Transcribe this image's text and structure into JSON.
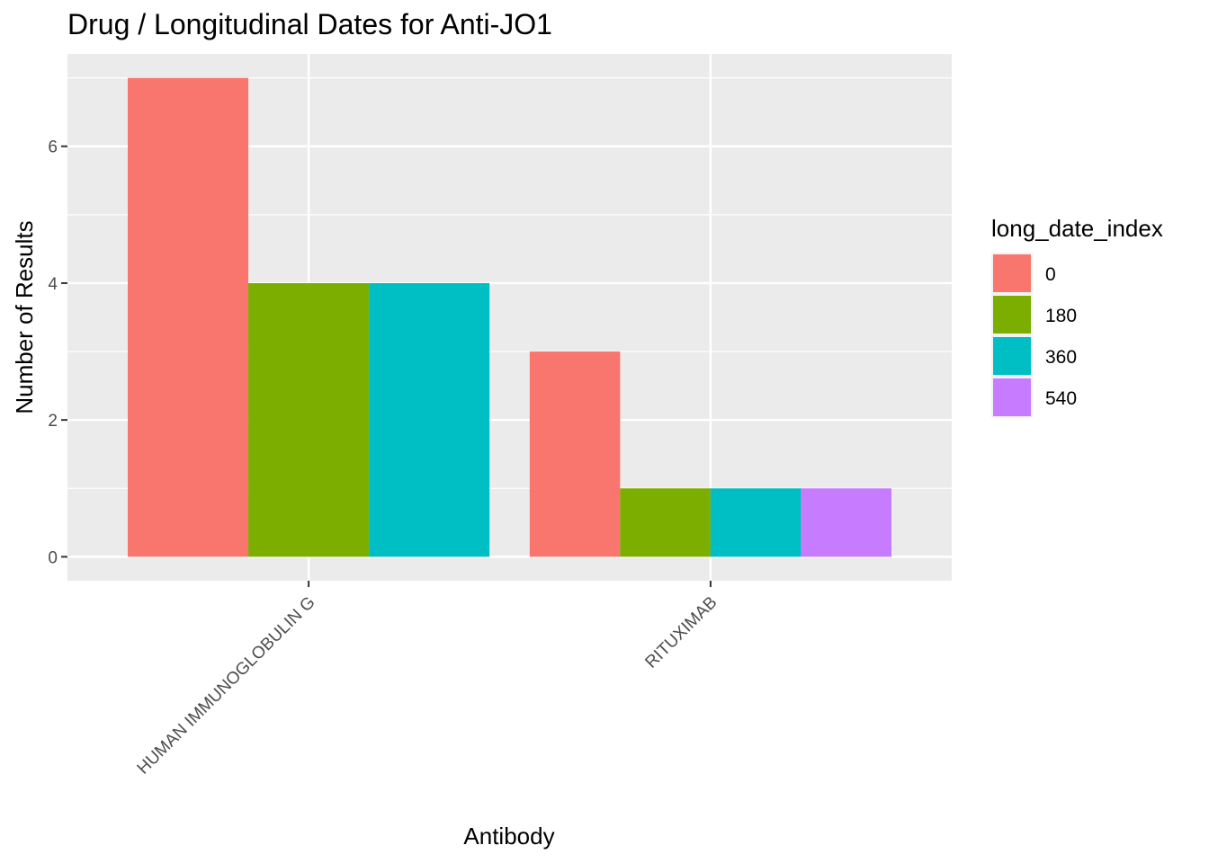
{
  "chart_data": {
    "type": "bar",
    "title": "Drug / Longitudinal Dates for Anti-JO1",
    "xlabel": "Antibody",
    "ylabel": "Number of Results",
    "ylim": [
      -0.35,
      7.35
    ],
    "yticks": [
      0,
      2,
      4,
      6
    ],
    "grid": true,
    "legend_position": "right",
    "legend_title": "long_date_index",
    "series": [
      {
        "name": "0",
        "color": "#F8766D"
      },
      {
        "name": "180",
        "color": "#7CAE00"
      },
      {
        "name": "360",
        "color": "#00BFC4"
      },
      {
        "name": "540",
        "color": "#C77CFF"
      }
    ],
    "groups": [
      {
        "category": "HUMAN IMMUNOGLOBULIN G",
        "bars": [
          {
            "series": "0",
            "value": 7
          },
          {
            "series": "180",
            "value": 4
          },
          {
            "series": "360",
            "value": 4
          }
        ]
      },
      {
        "category": "RITUXIMAB",
        "bars": [
          {
            "series": "0",
            "value": 3
          },
          {
            "series": "180",
            "value": 1
          },
          {
            "series": "360",
            "value": 1
          },
          {
            "series": "540",
            "value": 1
          }
        ]
      }
    ]
  }
}
